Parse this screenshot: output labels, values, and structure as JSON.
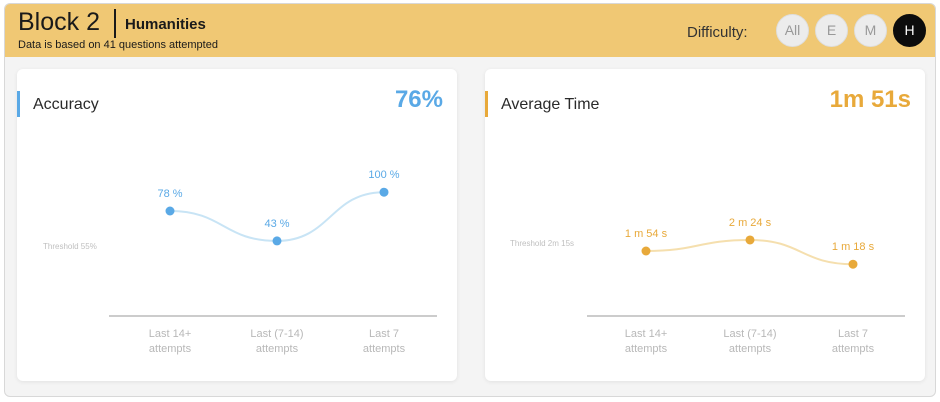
{
  "header": {
    "block_title": "Block 2",
    "subject": "Humanities",
    "note": "Data is based on 41 questions attempted",
    "difficulty_label": "Difficulty:",
    "difficulty_options": [
      "All",
      "E",
      "M",
      "H"
    ],
    "selected_difficulty": "H"
  },
  "accuracy": {
    "title": "Accuracy",
    "value": "76%",
    "color": "#5aa9e6",
    "line_color": "#c8e4f5",
    "threshold_label": "Threshold 55%",
    "points": [
      {
        "label": "78 %"
      },
      {
        "label": "43 %"
      },
      {
        "label": "100 %"
      }
    ]
  },
  "average_time": {
    "title": "Average Time",
    "value": "1m 51s",
    "color": "#e8a93a",
    "line_color": "#f5dfae",
    "threshold_label": "Threshold 2m 15s",
    "points": [
      {
        "label": "1 m 54 s"
      },
      {
        "label": "2 m 24 s"
      },
      {
        "label": "1 m 18 s"
      }
    ]
  },
  "x_labels": [
    [
      "Last 14+",
      "attempts"
    ],
    [
      "Last (7-14)",
      "attempts"
    ],
    [
      "Last 7",
      "attempts"
    ]
  ],
  "chart_data": [
    {
      "type": "line",
      "title": "Accuracy",
      "categories": [
        "Last 14+ attempts",
        "Last (7-14) attempts",
        "Last 7 attempts"
      ],
      "values": [
        78,
        43,
        100
      ],
      "unit": "%",
      "threshold": 55
    },
    {
      "type": "line",
      "title": "Average Time",
      "categories": [
        "Last 14+ attempts",
        "Last (7-14) attempts",
        "Last 7 attempts"
      ],
      "values": [
        114,
        144,
        78
      ],
      "unit": "s",
      "threshold": 135
    }
  ]
}
